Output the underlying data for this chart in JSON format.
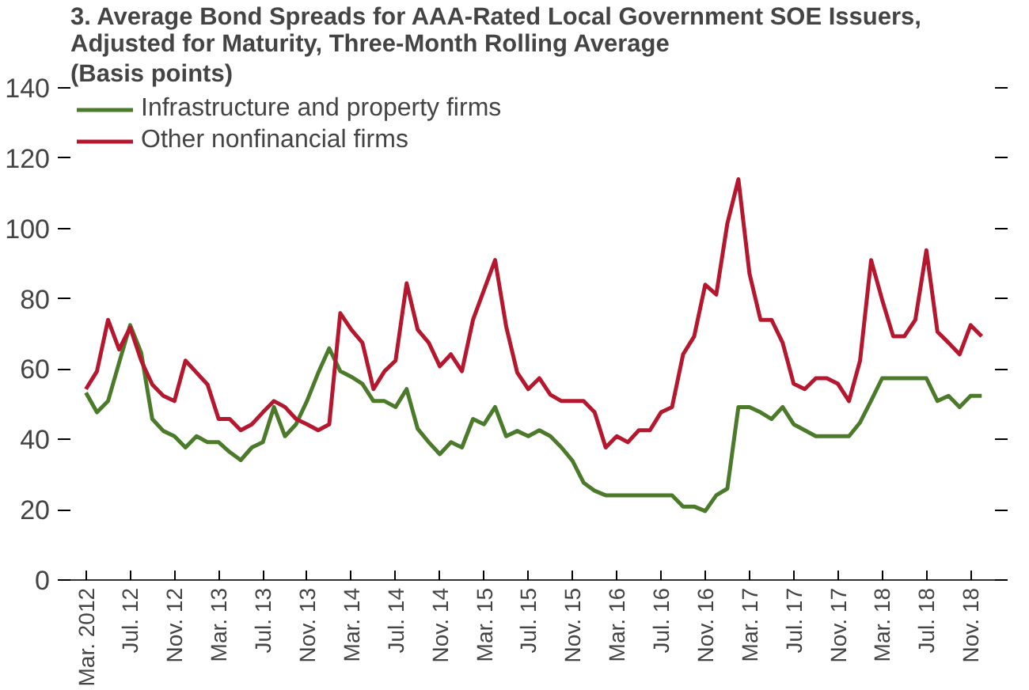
{
  "chart_data": {
    "type": "line",
    "title": "3. Average Bond Spreads for AAA-Rated Local Government SOE Issuers,\nAdjusted for Maturity, Three-Month Rolling Average",
    "subtitle": "(Basis points)",
    "categories": [
      "Mar. 2012",
      null,
      null,
      null,
      "Jul. 12",
      null,
      null,
      null,
      "Nov. 12",
      null,
      null,
      null,
      "Mar. 13",
      null,
      null,
      null,
      "Jul. 13",
      null,
      null,
      null,
      "Nov. 13",
      null,
      null,
      null,
      "Mar. 14",
      null,
      null,
      null,
      "Jul. 14",
      null,
      null,
      null,
      "Nov. 14",
      null,
      null,
      null,
      "Mar. 15",
      null,
      null,
      null,
      "Jul. 15",
      null,
      null,
      null,
      "Nov. 15",
      null,
      null,
      null,
      "Mar. 16",
      null,
      null,
      null,
      "Jul. 16",
      null,
      null,
      null,
      "Nov. 16",
      null,
      null,
      null,
      "Mar. 17",
      null,
      null,
      null,
      "Jul. 17",
      null,
      null,
      null,
      "Nov. 17",
      null,
      null,
      null,
      "Mar. 18",
      null,
      null,
      null,
      "Jul. 18",
      null,
      null,
      null,
      "Nov. 18",
      null
    ],
    "series": [
      {
        "name": "Infrastructure and property firms",
        "color": "#4a7a2a",
        "values": [
          53.3,
          47.7,
          50.9,
          61.8,
          72.5,
          64.6,
          45.8,
          42.4,
          40.9,
          37.7,
          40.9,
          39.2,
          39.2,
          36.4,
          34.1,
          37.7,
          39.2,
          49.2,
          40.9,
          44.3,
          51.0,
          58.9,
          65.9,
          59.4,
          57.8,
          55.8,
          50.9,
          50.9,
          49.2,
          54.3,
          43.0,
          39.2,
          35.8,
          39.2,
          37.7,
          45.8,
          44.3,
          49.2,
          40.9,
          42.4,
          40.9,
          42.6,
          40.9,
          37.7,
          33.9,
          27.7,
          25.4,
          24.1,
          24.1,
          24.1,
          24.1,
          24.1,
          24.1,
          24.1,
          20.9,
          20.9,
          19.6,
          24.1,
          26.0,
          49.2,
          49.2,
          47.7,
          45.8,
          49.2,
          44.3,
          42.6,
          40.9,
          40.9,
          40.9,
          40.9,
          44.8,
          51.0,
          57.4,
          57.4,
          57.4,
          57.4,
          57.4,
          50.9,
          52.4,
          49.2,
          52.4,
          52.4
        ]
      },
      {
        "name": "Other nonfinancial firms",
        "color": "#b5172e",
        "values": [
          54.3,
          59.4,
          74.0,
          65.6,
          71.8,
          62.4,
          55.6,
          52.4,
          50.9,
          62.4,
          59.0,
          55.6,
          45.8,
          45.8,
          42.6,
          44.3,
          47.7,
          50.9,
          49.2,
          45.8,
          44.3,
          42.6,
          44.3,
          75.9,
          71.2,
          67.5,
          54.3,
          59.4,
          62.4,
          84.4,
          71.2,
          67.5,
          60.8,
          64.2,
          59.4,
          74.0,
          82.5,
          91.0,
          72.1,
          59.0,
          54.3,
          57.4,
          52.7,
          50.9,
          50.9,
          50.9,
          47.7,
          37.7,
          40.9,
          39.2,
          42.6,
          42.6,
          47.7,
          49.2,
          64.2,
          69.3,
          84.0,
          81.2,
          101.4,
          114.0,
          87.2,
          74.0,
          74.0,
          67.5,
          55.8,
          54.3,
          57.4,
          57.4,
          55.8,
          50.9,
          62.4,
          91.0,
          79.7,
          69.3,
          69.3,
          74.0,
          93.8,
          70.6,
          67.5,
          64.2,
          72.5,
          69.3
        ]
      }
    ],
    "ylim": [
      0,
      140
    ],
    "yticks": [
      0,
      20,
      40,
      60,
      80,
      100,
      120,
      140
    ],
    "grid": false,
    "legend": "top left"
  }
}
